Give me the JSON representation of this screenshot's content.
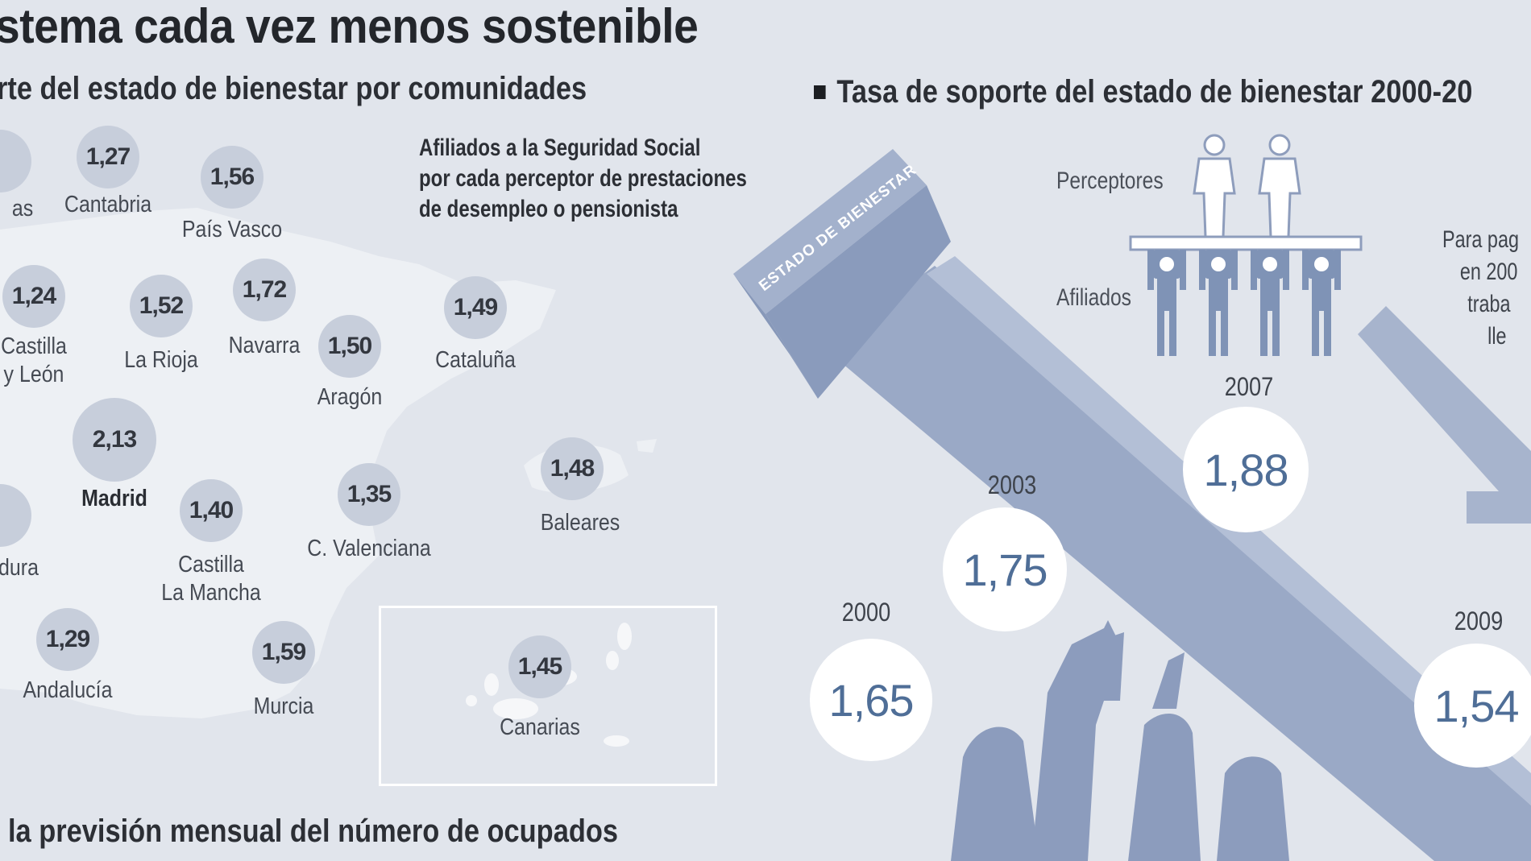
{
  "title": "stema cada vez menos sostenible",
  "left_subtitle": "rte del estado de bienestar por comunidades",
  "right_subtitle": "Tasa de soporte del estado de bienestar 2000-20",
  "bottom_subtitle": "la previsión mensual del número de ocupados",
  "map_note": [
    "Afiliados a la Seguridad Social",
    "por cada perceptor de prestaciones",
    "de desempleo o pensionista"
  ],
  "regions": [
    {
      "value": "1,27",
      "name": "Cantabria"
    },
    {
      "value": "1,56",
      "name": "País Vasco"
    },
    {
      "value": "1,24",
      "name": "Castilla",
      "name2": "y León"
    },
    {
      "value": "1,52",
      "name": "La Rioja"
    },
    {
      "value": "1,72",
      "name": "Navarra"
    },
    {
      "value": "1,50",
      "name": "Aragón"
    },
    {
      "value": "1,49",
      "name": "Cataluña"
    },
    {
      "value": "2,13",
      "name": "Madrid"
    },
    {
      "value": "1,40",
      "name": "Castilla",
      "name2": "La Mancha"
    },
    {
      "value": "1,35",
      "name": "C. Valenciana"
    },
    {
      "value": "1,48",
      "name": "Baleares"
    },
    {
      "value": "1,29",
      "name": "Andalucía"
    },
    {
      "value": "1,59",
      "name": "Murcia"
    },
    {
      "value": "1,45",
      "name": "Canarias"
    }
  ],
  "partial_labels": {
    "asturias": "as",
    "extremadura": "dura"
  },
  "pictogram": {
    "receivers_label": "Perceptores",
    "members_label": "Afiliados"
  },
  "column_label": "ESTADO DE BIENESTAR",
  "timeline": [
    {
      "year": "2000",
      "rate": "1,65"
    },
    {
      "year": "2003",
      "rate": "1,75"
    },
    {
      "year": "2007",
      "rate": "1,88"
    },
    {
      "year": "2009",
      "rate": "1,54"
    }
  ],
  "side_note": [
    "Para pag",
    "en 200",
    "traba",
    "lle"
  ],
  "colors": {
    "background": "#e1e5ec",
    "bubble": "#c7cedb",
    "column": "#99a8c5",
    "rate_text": "#4f6e97"
  }
}
